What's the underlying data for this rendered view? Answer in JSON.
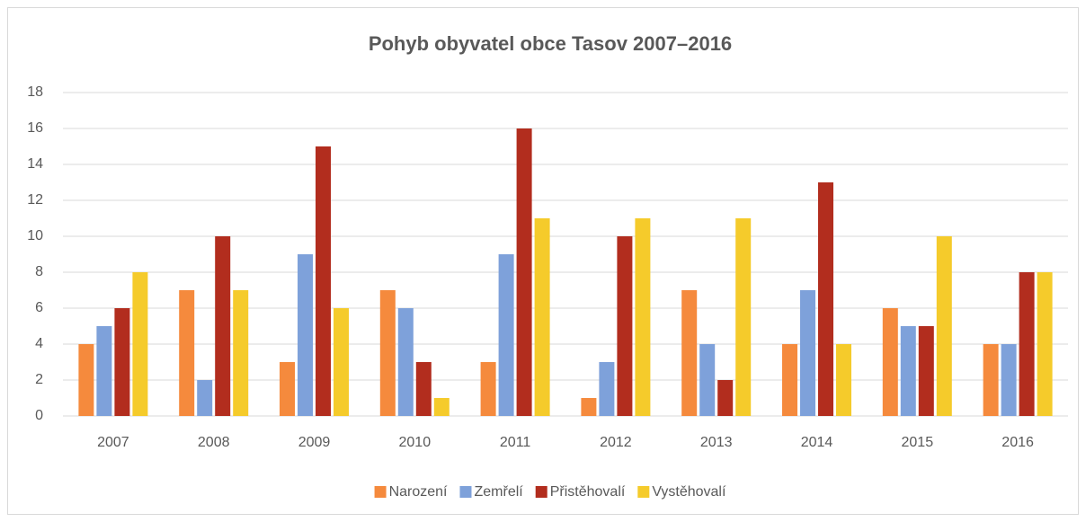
{
  "chart_data": {
    "type": "bar",
    "title": "Pohyb obyvatel obce Tasov 2007–2016",
    "categories": [
      "2007",
      "2008",
      "2009",
      "2010",
      "2011",
      "2012",
      "2013",
      "2014",
      "2015",
      "2016"
    ],
    "series": [
      {
        "name": "Narození",
        "color": "#f58a3d",
        "values": [
          4,
          7,
          3,
          7,
          3,
          1,
          7,
          4,
          6,
          4
        ]
      },
      {
        "name": "Zemřelí",
        "color": "#7ea1da",
        "values": [
          5,
          2,
          9,
          6,
          9,
          3,
          4,
          7,
          5,
          4
        ]
      },
      {
        "name": "Přistěhovalí",
        "color": "#b22d1e",
        "values": [
          6,
          10,
          15,
          3,
          16,
          10,
          2,
          13,
          5,
          8
        ]
      },
      {
        "name": "Vystěhovalí",
        "color": "#f5cb2b",
        "values": [
          8,
          7,
          6,
          1,
          11,
          11,
          11,
          4,
          10,
          8
        ]
      }
    ],
    "ylim": [
      0,
      18
    ],
    "yticks": [
      0,
      2,
      4,
      6,
      8,
      10,
      12,
      14,
      16,
      18
    ],
    "grid": true,
    "legend": "bottom"
  }
}
